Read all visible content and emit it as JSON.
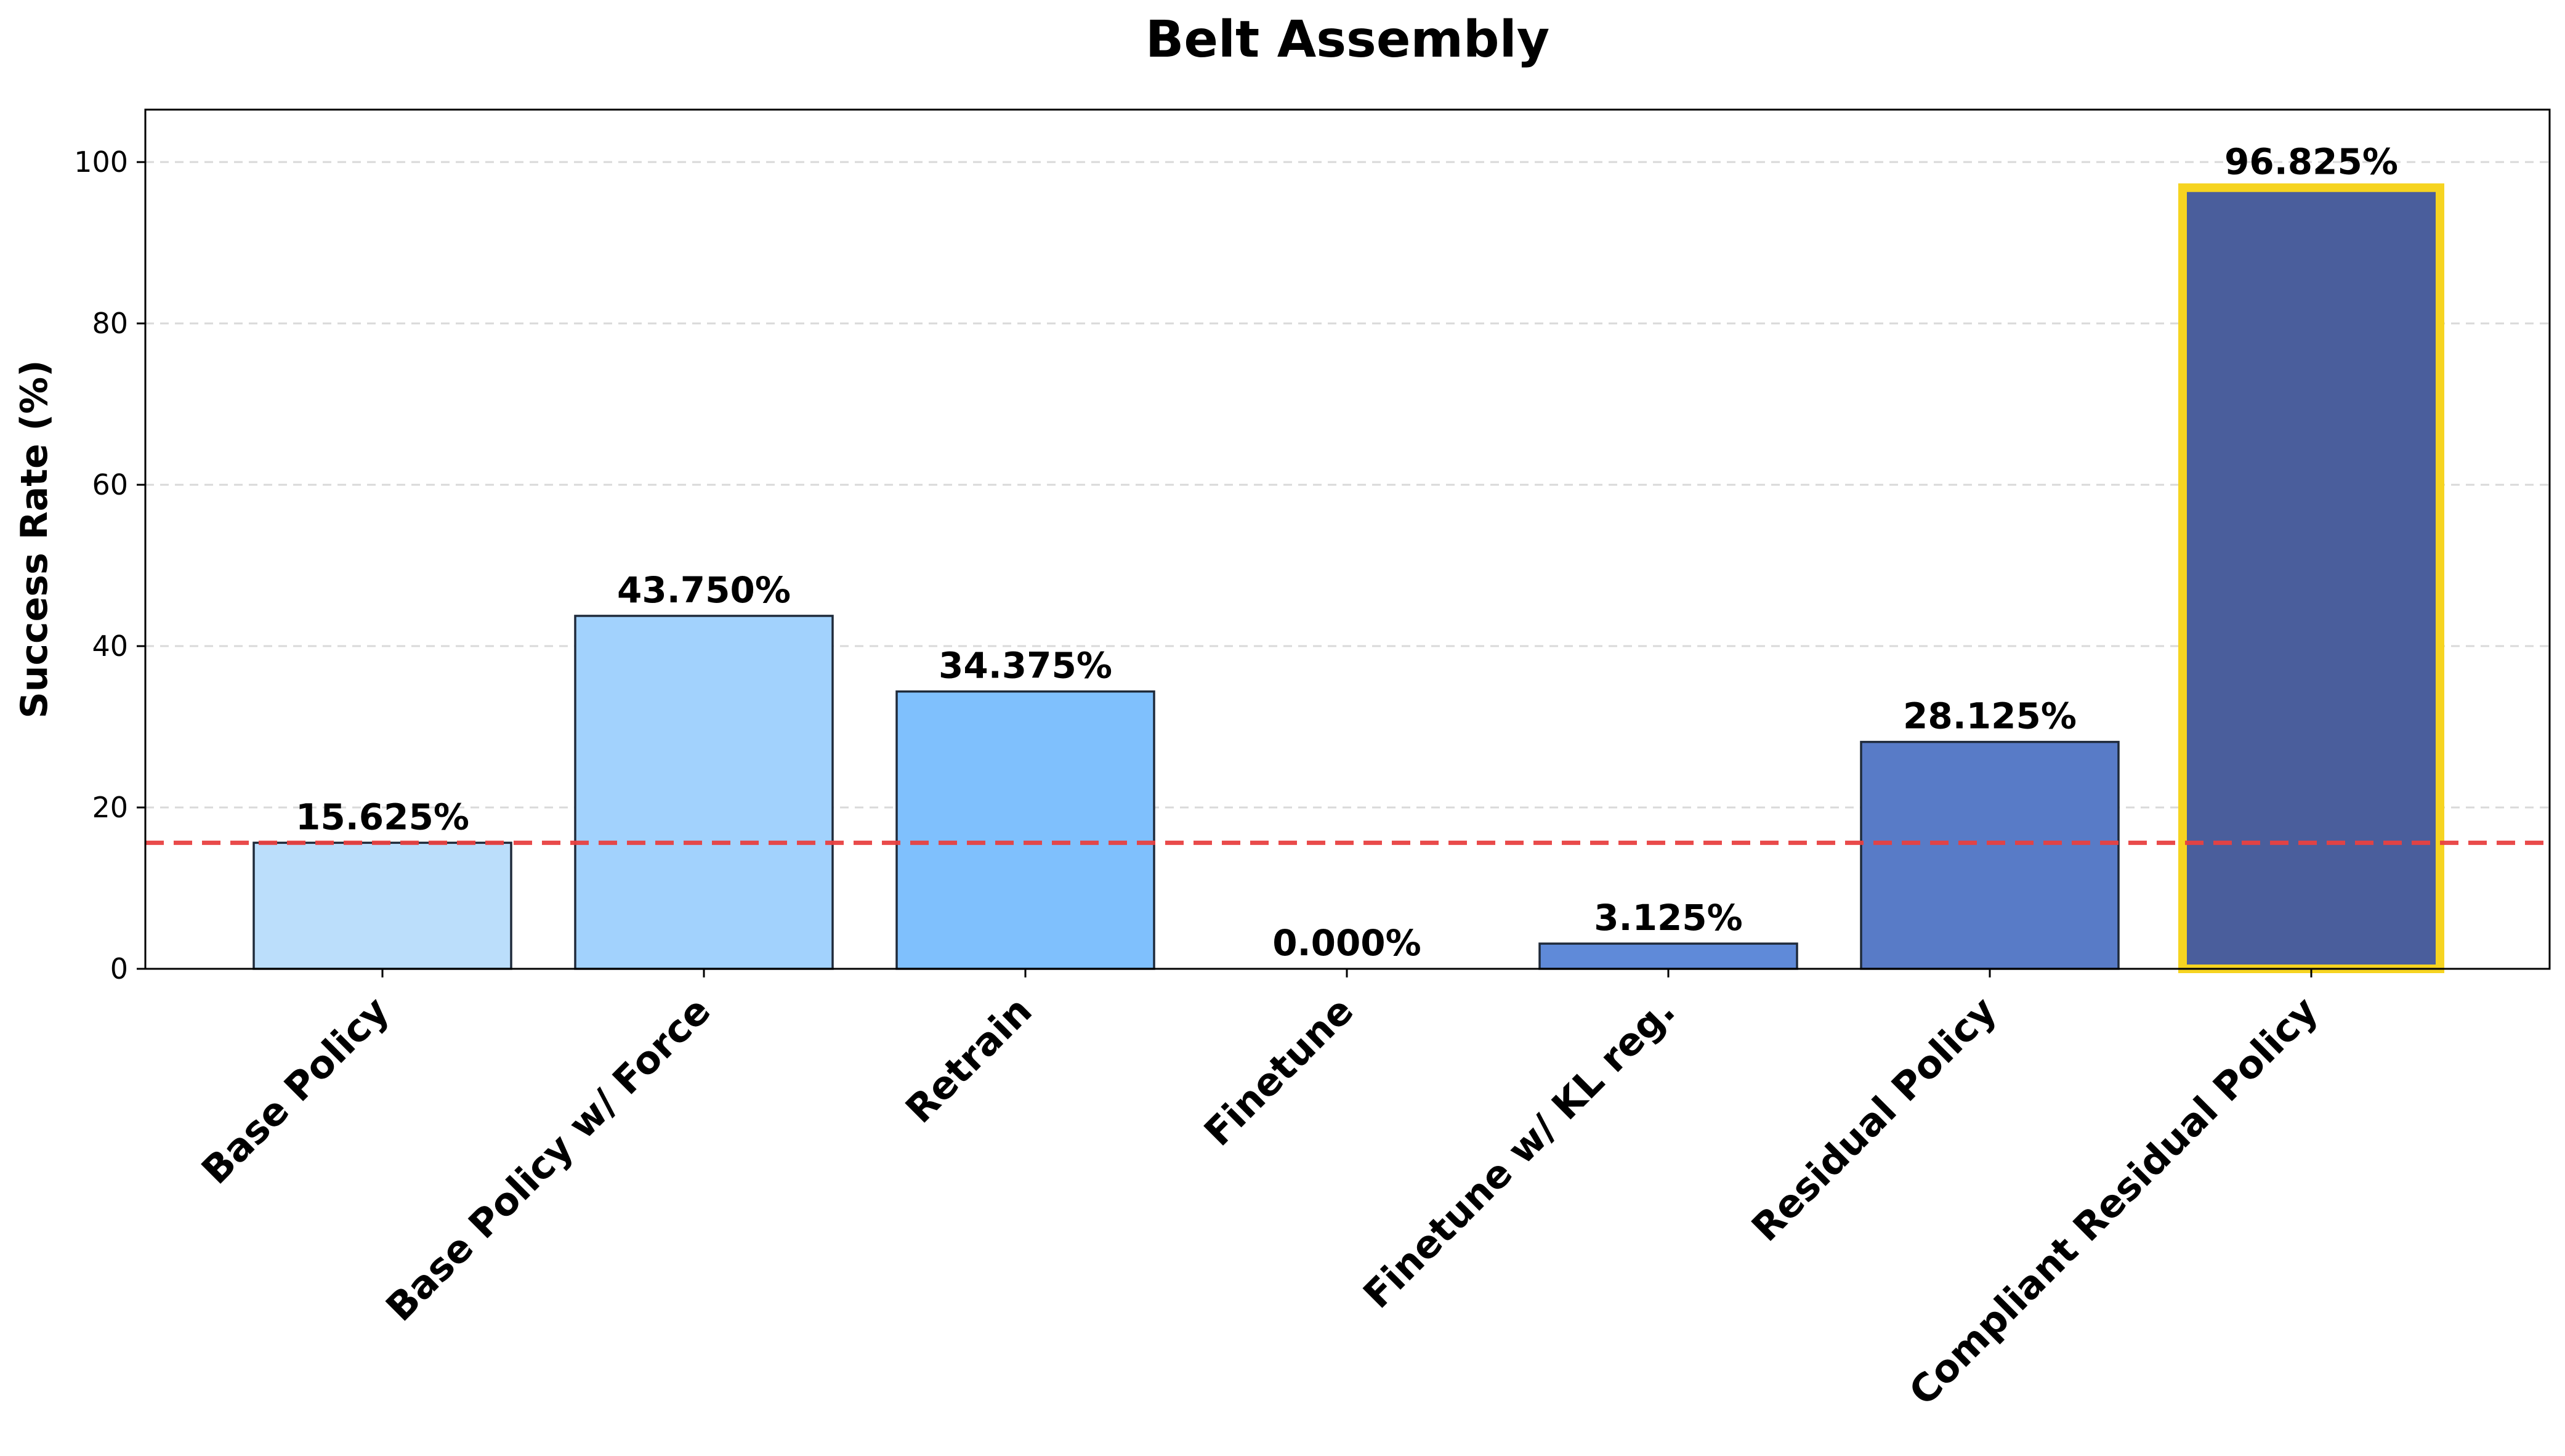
{
  "chart_data": {
    "type": "bar",
    "title": "Belt Assembly",
    "xlabel": "",
    "ylabel": "Success Rate (%)",
    "ylim": [
      0,
      106.5
    ],
    "yticks": [
      0,
      20,
      40,
      60,
      80,
      100
    ],
    "ytick_labels": [
      "0",
      "20",
      "40",
      "60",
      "80",
      "100"
    ],
    "grid": true,
    "categories": [
      "Base Policy",
      "Base Policy w/ Force",
      "Retrain",
      "Finetune",
      "Finetune w/ KL reg.",
      "Residual Policy",
      "Compliant Residual Policy"
    ],
    "values": [
      15.625,
      43.75,
      34.375,
      0.0,
      3.125,
      28.125,
      96.825
    ],
    "value_labels": [
      "15.625%",
      "43.750%",
      "34.375%",
      "0.000%",
      "3.125%",
      "28.125%",
      "96.825%"
    ],
    "colors": [
      "#bbdefb",
      "#a2d2fd",
      "#7fc0fd",
      "#6f9ee8",
      "#5f8ad9",
      "#587bc7",
      "#4a5e9c"
    ],
    "highlight_index": 6,
    "highlight_color": "#f6d421",
    "reference_line": {
      "value": 15.625,
      "color": "#e84040",
      "style": "dashed"
    }
  }
}
